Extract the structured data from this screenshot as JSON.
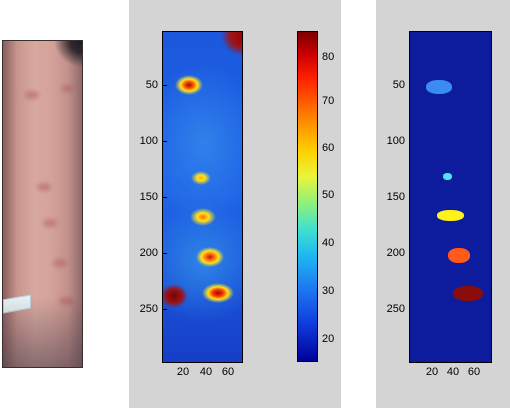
{
  "left_panel": {
    "description_icon": "skin-photo-image"
  },
  "heatmap": {
    "y_ticks": [
      "50",
      "100",
      "150",
      "200",
      "250"
    ],
    "x_ticks": [
      "20",
      "40",
      "60"
    ]
  },
  "colorbar": {
    "ticks": [
      "80",
      "70",
      "60",
      "50",
      "40",
      "30",
      "20"
    ]
  },
  "segmentation": {
    "y_ticks": [
      "50",
      "100",
      "150",
      "200",
      "250"
    ],
    "x_ticks": [
      "20",
      "40",
      "60"
    ]
  },
  "colors": {
    "figure_background": "#d4d4d4",
    "background_blue": "#0a2fb8",
    "segmentation_background": "#0c1c9c",
    "hot_red": "#9a0b0b",
    "orange": "#ff7a14",
    "yellow": "#fff21a",
    "cyan_blue": "#3a8cf0"
  }
}
